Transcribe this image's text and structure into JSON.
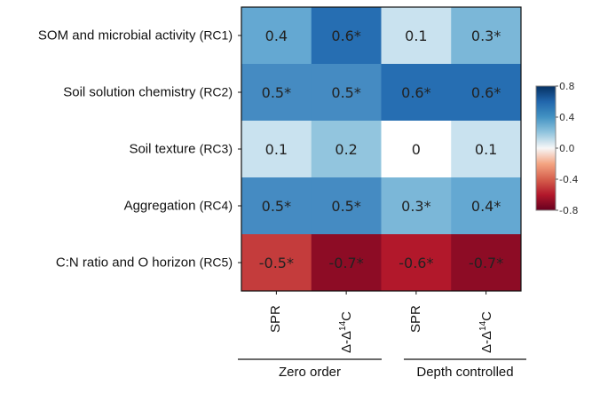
{
  "chart_data": {
    "type": "heatmap",
    "title": "",
    "rows": [
      {
        "label": "SOM and microbial activity",
        "code": "(RC1)"
      },
      {
        "label": "Soil solution chemistry",
        "code": "(RC2)"
      },
      {
        "label": "Soil texture",
        "code": "(RC3)"
      },
      {
        "label": "Aggregation",
        "code": "(RC4)"
      },
      {
        "label": "C:N ratio and O horizon",
        "code": "(RC5)"
      }
    ],
    "columns": [
      {
        "label": "SPR",
        "group": "Zero order"
      },
      {
        "label": "Δ-Δ14C",
        "group": "Zero order"
      },
      {
        "label": "SPR",
        "group": "Depth controlled"
      },
      {
        "label": "Δ-Δ14C",
        "group": "Depth controlled"
      }
    ],
    "column_groups": [
      "Zero order",
      "Depth controlled"
    ],
    "values": [
      [
        0.4,
        0.6,
        0.1,
        0.3
      ],
      [
        0.5,
        0.5,
        0.6,
        0.6
      ],
      [
        0.1,
        0.2,
        0.0,
        0.1
      ],
      [
        0.5,
        0.5,
        0.3,
        0.4
      ],
      [
        -0.5,
        -0.7,
        -0.6,
        -0.7
      ]
    ],
    "labels": [
      [
        "0.4",
        "0.6*",
        "0.1",
        "0.3*"
      ],
      [
        "0.5*",
        "0.5*",
        "0.6*",
        "0.6*"
      ],
      [
        "0.1",
        "0.2",
        "0",
        "0.1"
      ],
      [
        "0.5*",
        "0.5*",
        "0.3*",
        "0.4*"
      ],
      [
        "-0.5*",
        "-0.7*",
        "-0.6*",
        "-0.7*"
      ]
    ],
    "colorbar": {
      "range": [
        -0.8,
        0.8
      ],
      "ticks": [
        "0.8",
        "0.4",
        "0.0",
        "-0.4",
        "-0.8"
      ],
      "colormap": "RdBu",
      "placement": "right"
    }
  }
}
